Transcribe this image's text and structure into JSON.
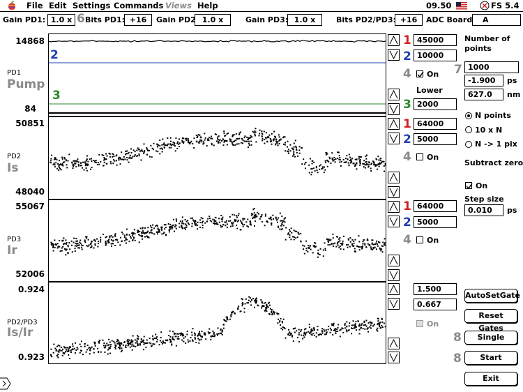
{
  "menubar": {
    "items": [
      "File",
      "Edit",
      "Settings",
      "Commands",
      "Views",
      "Help"
    ],
    "clock": "09.50",
    "app": "FS 5.4"
  },
  "toolbar": {
    "gain_pd1_label": "Gain PD1:",
    "gain_pd1_value": "1.0 x",
    "bits_pd1_marker": "6",
    "bits_pd1_label": "Bits PD1:",
    "bits_pd1_value": "+16",
    "gain_pd2_label": "Gain PD2:",
    "gain_pd2_value": "1.0 x",
    "gain_pd3_label": "Gain PD3:",
    "gain_pd3_value": "1.0 x",
    "bits_pd23_label": "Bits PD2/PD3:",
    "bits_pd23_value": "+16",
    "adc_label": "ADC Board:",
    "adc_value": "A"
  },
  "panels": {
    "pd1": {
      "top": "14868",
      "bottom": "84",
      "name": "PD1",
      "signal": "Pump",
      "marker2": "2",
      "marker3": "3"
    },
    "pd2": {
      "top": "50851",
      "bottom": "48040",
      "name": "PD2",
      "signal": "Is"
    },
    "pd3": {
      "top": "55067",
      "bottom": "52006",
      "name": "PD3",
      "signal": "Ir"
    },
    "ratio": {
      "top": "0.924",
      "bottom": "0.923",
      "name": "PD2/PD3",
      "signal": "Is/Ir"
    }
  },
  "gates": {
    "pd1": {
      "m1": "1",
      "v1": "45000",
      "m2": "2",
      "v2": "10000",
      "m4": "4",
      "on": "On",
      "lower_label": "Lower",
      "m3": "3",
      "v3": "2000"
    },
    "pd2": {
      "m1": "1",
      "v1": "64000",
      "m2": "2",
      "v2": "5000",
      "m4": "4",
      "on": "On"
    },
    "pd3": {
      "m1": "1",
      "v1": "64000",
      "m2": "2",
      "v2": "5000",
      "m4": "4",
      "on": "On"
    },
    "ratio": {
      "v1": "1.500",
      "v2": "0.667",
      "on": "On"
    }
  },
  "right": {
    "num_points_label1": "Number of",
    "num_points_label2": "points",
    "marker7": "7",
    "num_points": "1000",
    "pos_ps": "-1.900",
    "ps_unit": "ps",
    "wavelength": "627.0",
    "nm_unit": "nm",
    "radio_n": "N points",
    "radio_10n": "10 x N",
    "radio_pix": "N -> 1 pix",
    "subtract_label": "Subtract zero",
    "subtract_on": "On",
    "step_label": "Step size",
    "step_value": "0.010",
    "step_unit": "ps"
  },
  "buttons": {
    "autoset": "AutoSetGate",
    "reset": "Reset Gates",
    "marker8a": "8",
    "single": "Single",
    "marker8b": "8",
    "start": "Start",
    "exit": "Exit"
  }
}
